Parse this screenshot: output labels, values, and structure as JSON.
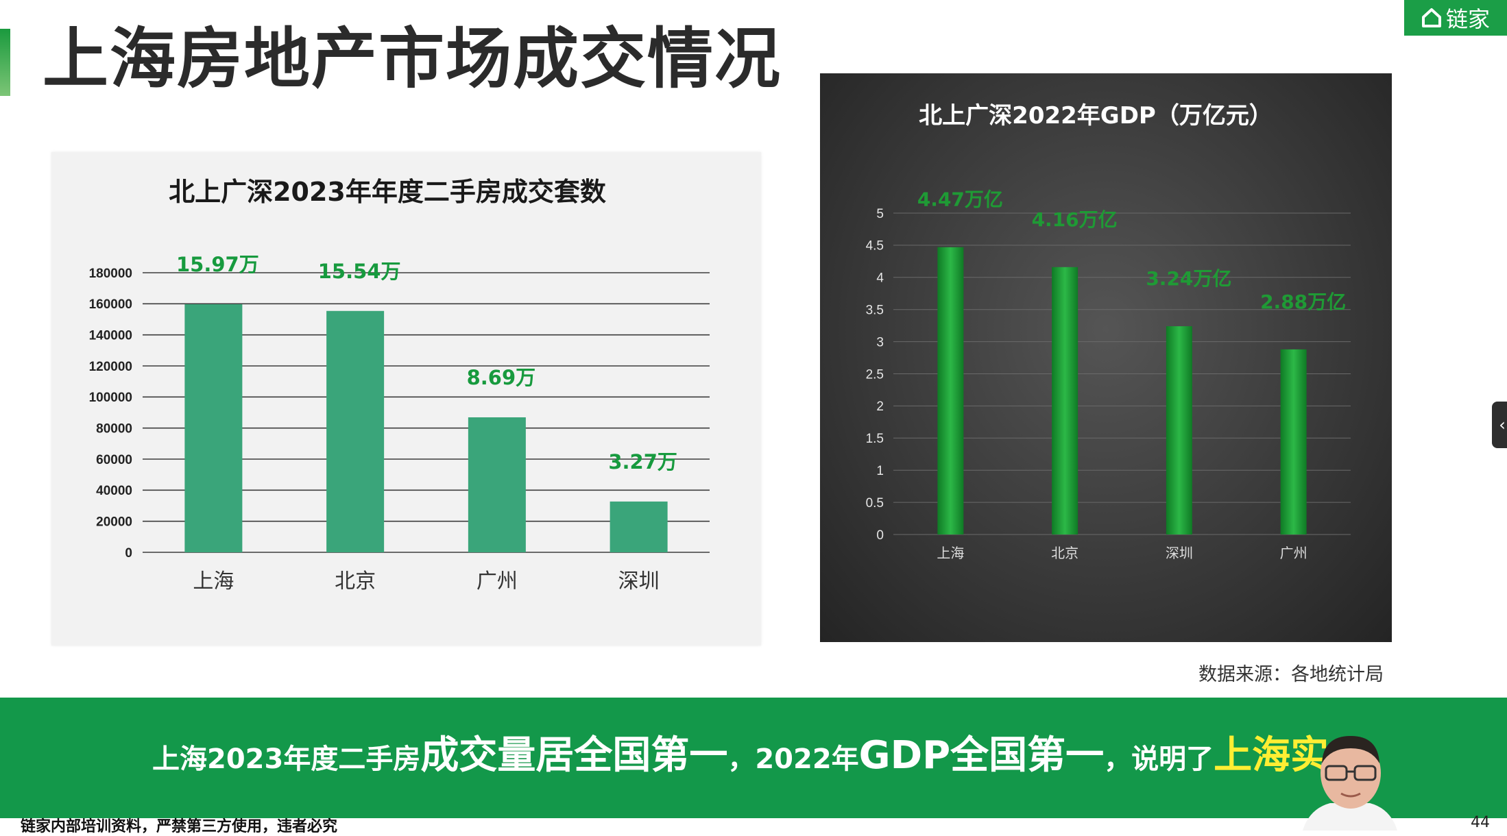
{
  "page": {
    "title": "上海房地产市场成交情况",
    "brand": "链家",
    "source_note": "数据来源：各地统计局",
    "banner": {
      "part1": "上海2023年度二手房",
      "part2": "成交量居全国第一",
      "part3": "，2022年",
      "part4": "GDP全国第一",
      "part5": "，说明了",
      "part6": "上海实"
    },
    "footer_note": "链家内部培训资料，严禁第三方使用，违者必究",
    "page_number": "44",
    "side_tab_icon": "chevron-left-icon"
  },
  "colors": {
    "brand_green": "#1b9e47",
    "bar_left": "#3aa57a",
    "label_left": "#179a3e",
    "bar_right": "#23a33e",
    "label_right": "#1f9a35",
    "highlight": "#ffee33"
  },
  "chart_data": [
    {
      "type": "bar",
      "title": "北上广深2023年年度二手房成交套数",
      "categories": [
        "上海",
        "北京",
        "广州",
        "深圳"
      ],
      "values": [
        159700,
        155400,
        86900,
        32700
      ],
      "data_labels": [
        "15.97万",
        "15.54万",
        "8.69万",
        "3.27万"
      ],
      "ylim": [
        0,
        180000
      ],
      "yticks": [
        0,
        20000,
        40000,
        60000,
        80000,
        100000,
        120000,
        140000,
        160000,
        180000
      ],
      "xlabel": "",
      "ylabel": "",
      "grid": true,
      "legend": "none"
    },
    {
      "type": "bar",
      "title": "北上广深2022年GDP（万亿元）",
      "categories": [
        "上海",
        "北京",
        "深圳",
        "广州"
      ],
      "values": [
        4.47,
        4.16,
        3.24,
        2.88
      ],
      "data_labels": [
        "4.47万亿",
        "4.16万亿",
        "3.24万亿",
        "2.88万亿"
      ],
      "ylim": [
        0,
        5
      ],
      "yticks": [
        0,
        0.5,
        1,
        1.5,
        2,
        2.5,
        3,
        3.5,
        4,
        4.5,
        5
      ],
      "xlabel": "",
      "ylabel": "",
      "grid": true,
      "legend": "none"
    }
  ]
}
